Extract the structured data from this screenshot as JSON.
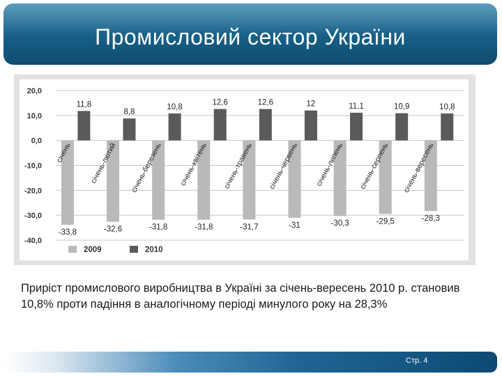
{
  "slide": {
    "title": "Промисловий сектор України",
    "caption": "Приріст промислового виробництва в Україні за січень-вересень 2010 р. становив 10,8% проти падіння в аналогічному періоді минулого року на 28,3%",
    "page": "Стр. 4"
  },
  "colors": {
    "bar2009": "#b9b9b9",
    "bar2010": "#5a5a5a",
    "title_bg": "#1a6590"
  },
  "chart_data": {
    "type": "bar",
    "title": "",
    "xlabel": "",
    "ylabel": "",
    "ylim": [
      -40,
      20
    ],
    "y_ticks": [
      20,
      10,
      0,
      -10,
      -20,
      -30,
      -40
    ],
    "y_tick_labels": [
      "20,0",
      "10,0",
      "0,0",
      "-10,0",
      "-20,0",
      "-30,0",
      "-40,0"
    ],
    "grid": true,
    "legend": "bottom-left",
    "categories": [
      "січень",
      "січень-лютий",
      "січень-березень",
      "січень-квітень",
      "січень-травень",
      "січень-червень",
      "січень-липень",
      "січень-серпень",
      "січень-вересень"
    ],
    "series": [
      {
        "name": "2009",
        "values": [
          -33.8,
          -32.6,
          -31.8,
          -31.8,
          -31.7,
          -31,
          -30.3,
          -29.5,
          -28.3
        ],
        "labels": [
          "-33,8",
          "-32,6",
          "-31,8",
          "-31,8",
          "-31,7",
          "-31",
          "-30,3",
          "-29,5",
          "-28,3"
        ]
      },
      {
        "name": "2010",
        "values": [
          11.8,
          8.8,
          10.8,
          12.6,
          12.6,
          12,
          11.1,
          10.9,
          10.8
        ],
        "labels": [
          "11,8",
          "8,8",
          "10,8",
          "12,6",
          "12,6",
          "12",
          "11,1",
          "10,9",
          "10,8"
        ]
      }
    ]
  }
}
